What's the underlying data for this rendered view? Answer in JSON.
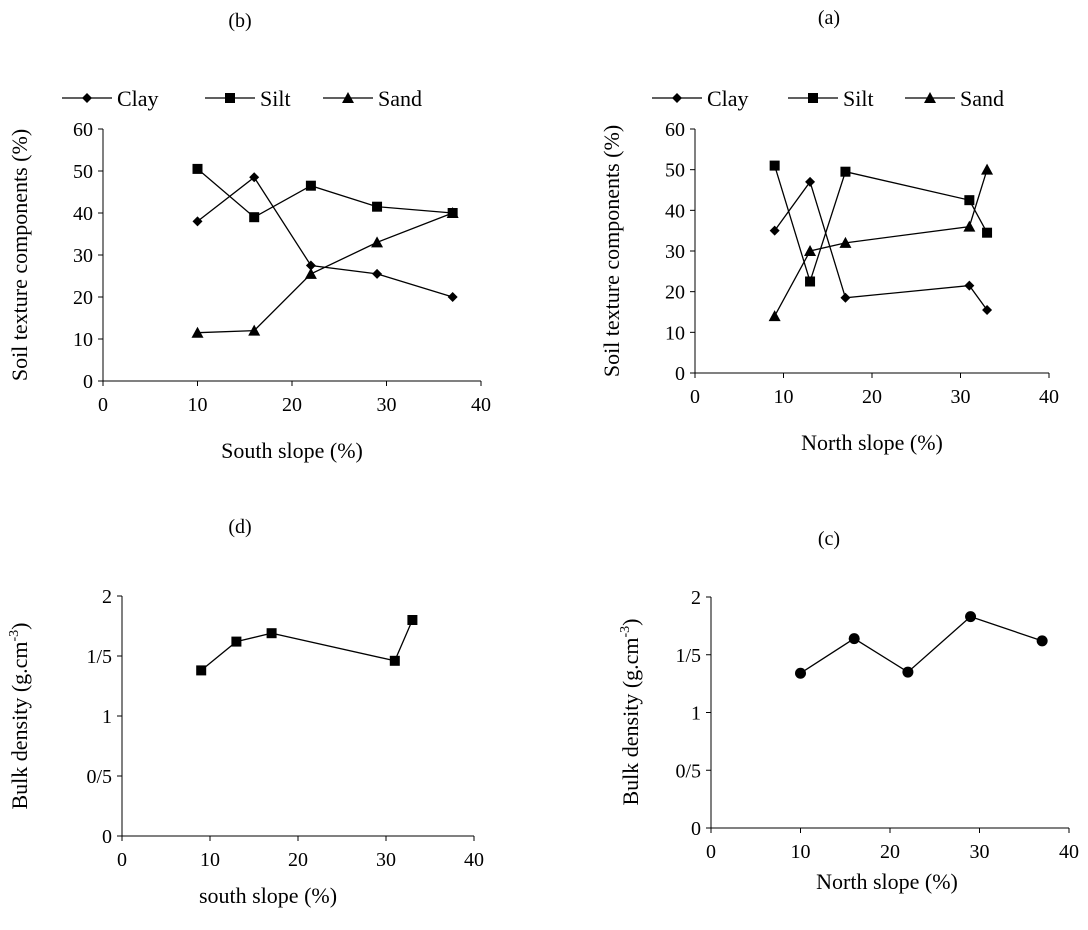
{
  "chart_data": [
    {
      "id": "b",
      "panel_label": "(b)",
      "type": "line",
      "xlabel": "South slope (%)",
      "ylabel": "Soil texture components (%)",
      "xlim": [
        0,
        40
      ],
      "ylim": [
        0,
        60
      ],
      "xticks": [
        "0",
        "10",
        "20",
        "30",
        "40"
      ],
      "yticks": [
        "0",
        "10",
        "20",
        "30",
        "40",
        "50",
        "60"
      ],
      "legend_position": "top",
      "grid": false,
      "series": [
        {
          "name": "Clay",
          "marker": "diamond",
          "x": [
            10,
            16,
            22,
            29,
            37
          ],
          "y": [
            38,
            48.5,
            27.5,
            25.5,
            20
          ]
        },
        {
          "name": "Silt",
          "marker": "square",
          "x": [
            10,
            16,
            22,
            29,
            37
          ],
          "y": [
            50.5,
            39,
            46.5,
            41.5,
            40
          ]
        },
        {
          "name": "Sand",
          "marker": "triangle",
          "x": [
            10,
            16,
            22,
            29,
            37
          ],
          "y": [
            11.5,
            12,
            25.5,
            33,
            40
          ]
        }
      ]
    },
    {
      "id": "a",
      "panel_label": "(a)",
      "type": "line",
      "xlabel": "North slope (%)",
      "ylabel": "Soil texture components (%)",
      "xlim": [
        0,
        40
      ],
      "ylim": [
        0,
        60
      ],
      "xticks": [
        "0",
        "10",
        "20",
        "30",
        "40"
      ],
      "yticks": [
        "0",
        "10",
        "20",
        "30",
        "40",
        "50",
        "60"
      ],
      "legend_position": "top",
      "grid": false,
      "series": [
        {
          "name": "Clay",
          "marker": "diamond",
          "x": [
            9,
            13,
            17,
            31,
            33
          ],
          "y": [
            35,
            47,
            18.5,
            21.5,
            15.5
          ]
        },
        {
          "name": "Silt",
          "marker": "square",
          "x": [
            9,
            13,
            17,
            31,
            33
          ],
          "y": [
            51,
            22.5,
            49.5,
            42.5,
            34.5
          ]
        },
        {
          "name": "Sand",
          "marker": "triangle",
          "x": [
            9,
            13,
            17,
            31,
            33
          ],
          "y": [
            14,
            30,
            32,
            36,
            50
          ]
        }
      ]
    },
    {
      "id": "d",
      "panel_label": "(d)",
      "type": "line",
      "xlabel": "south slope (%)",
      "ylabel": "Bulk density (g.cm-3)",
      "ylabel_base": "Bulk density (g.cm",
      "ylabel_sup": "-3",
      "ylabel_close": ")",
      "xlim": [
        0,
        40
      ],
      "ylim": [
        0,
        2
      ],
      "xticks": [
        "0",
        "10",
        "20",
        "30",
        "40"
      ],
      "yticks": [
        "0",
        "0/5",
        "1",
        "1/5",
        "2"
      ],
      "grid": false,
      "series": [
        {
          "marker": "square",
          "x": [
            9,
            13,
            17,
            31,
            33
          ],
          "y": [
            1.38,
            1.62,
            1.69,
            1.46,
            1.8
          ]
        }
      ]
    },
    {
      "id": "c",
      "panel_label": "(c)",
      "type": "line",
      "xlabel": "North slope (%)",
      "ylabel": "Bulk density (g.cm-3)",
      "ylabel_base": "Bulk density (g.cm",
      "ylabel_sup": "-3",
      "ylabel_close": ")",
      "xlim": [
        0,
        40
      ],
      "ylim": [
        0,
        2
      ],
      "xticks": [
        "0",
        "10",
        "20",
        "30",
        "40"
      ],
      "yticks": [
        "0",
        "0/5",
        "1",
        "1/5",
        "2"
      ],
      "grid": false,
      "series": [
        {
          "marker": "circle",
          "x": [
            10,
            16,
            22,
            29,
            37
          ],
          "y": [
            1.34,
            1.64,
            1.35,
            1.83,
            1.62
          ]
        }
      ]
    }
  ]
}
